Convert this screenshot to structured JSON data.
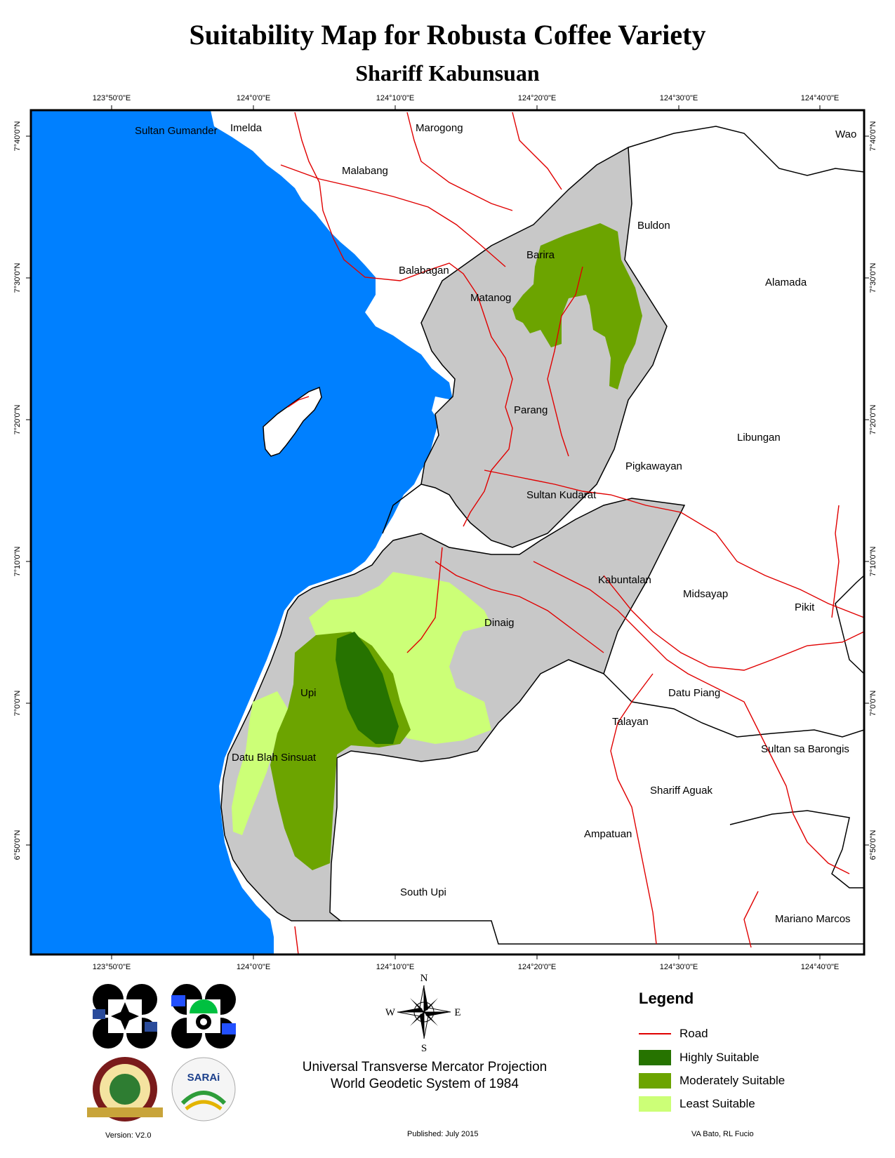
{
  "title": "Suitability Map for Robusta Coffee Variety",
  "subtitle": "Shariff Kabunsuan",
  "lon_ticks": [
    "123°50'0\"E",
    "124°0'0\"E",
    "124°10'0\"E",
    "124°20'0\"E",
    "124°30'0\"E",
    "124°40'0\"E"
  ],
  "lat_ticks": [
    "7°40'0\"N",
    "7°30'0\"N",
    "7°20'0\"N",
    "7°10'0\"N",
    "7°0'0\"N",
    "6°50'0\"N"
  ],
  "places": {
    "sultan_gumander": "Sultan Gumander",
    "imelda": "Imelda",
    "marogong": "Marogong",
    "wao": "Wao",
    "malabang": "Malabang",
    "buldon": "Buldon",
    "barira": "Barira",
    "balabagan": "Balabagan",
    "alamada": "Alamada",
    "matanog": "Matanog",
    "parang": "Parang",
    "libungan": "Libungan",
    "pigkawayan": "Pigkawayan",
    "sultan_kudarat": "Sultan Kudarat",
    "kabuntalan": "Kabuntalan",
    "midsayap": "Midsayap",
    "pikit": "Pikit",
    "dinaig": "Dinaig",
    "upi": "Upi",
    "datu_piang": "Datu Piang",
    "talayan": "Talayan",
    "datu_blah_sinsuat": "Datu Blah Sinsuat",
    "sultan_sa_barongis": "Sultan sa Barongis",
    "shariff_aguak": "Shariff Aguak",
    "ampatuan": "Ampatuan",
    "south_upi": "South Upi",
    "mariano_marcos": "Mariano Marcos"
  },
  "compass": {
    "n": "N",
    "s": "S",
    "e": "E",
    "w": "W"
  },
  "legend": {
    "title": "Legend",
    "items": [
      {
        "label": "Road",
        "color": "#e00000"
      },
      {
        "label": "Highly Suitable",
        "color": "#267300"
      },
      {
        "label": "Moderately Suitable",
        "color": "#6ca400"
      },
      {
        "label": "Least Suitable",
        "color": "#ccff77"
      }
    ]
  },
  "colors": {
    "sea": "#0080ff",
    "province": "#c8c8c8",
    "road": "#e00000"
  },
  "projection_line1": "Universal Transverse Mercator Projection",
  "projection_line2": "World Geodetic System of 1984",
  "version": "Version: V2.0",
  "published": "Published: July 2015",
  "authors": "VA Bato, RL Fucio",
  "logos": [
    "DA logo",
    "DOST logo",
    "UP Los Baños seal",
    "SARAi logo"
  ]
}
